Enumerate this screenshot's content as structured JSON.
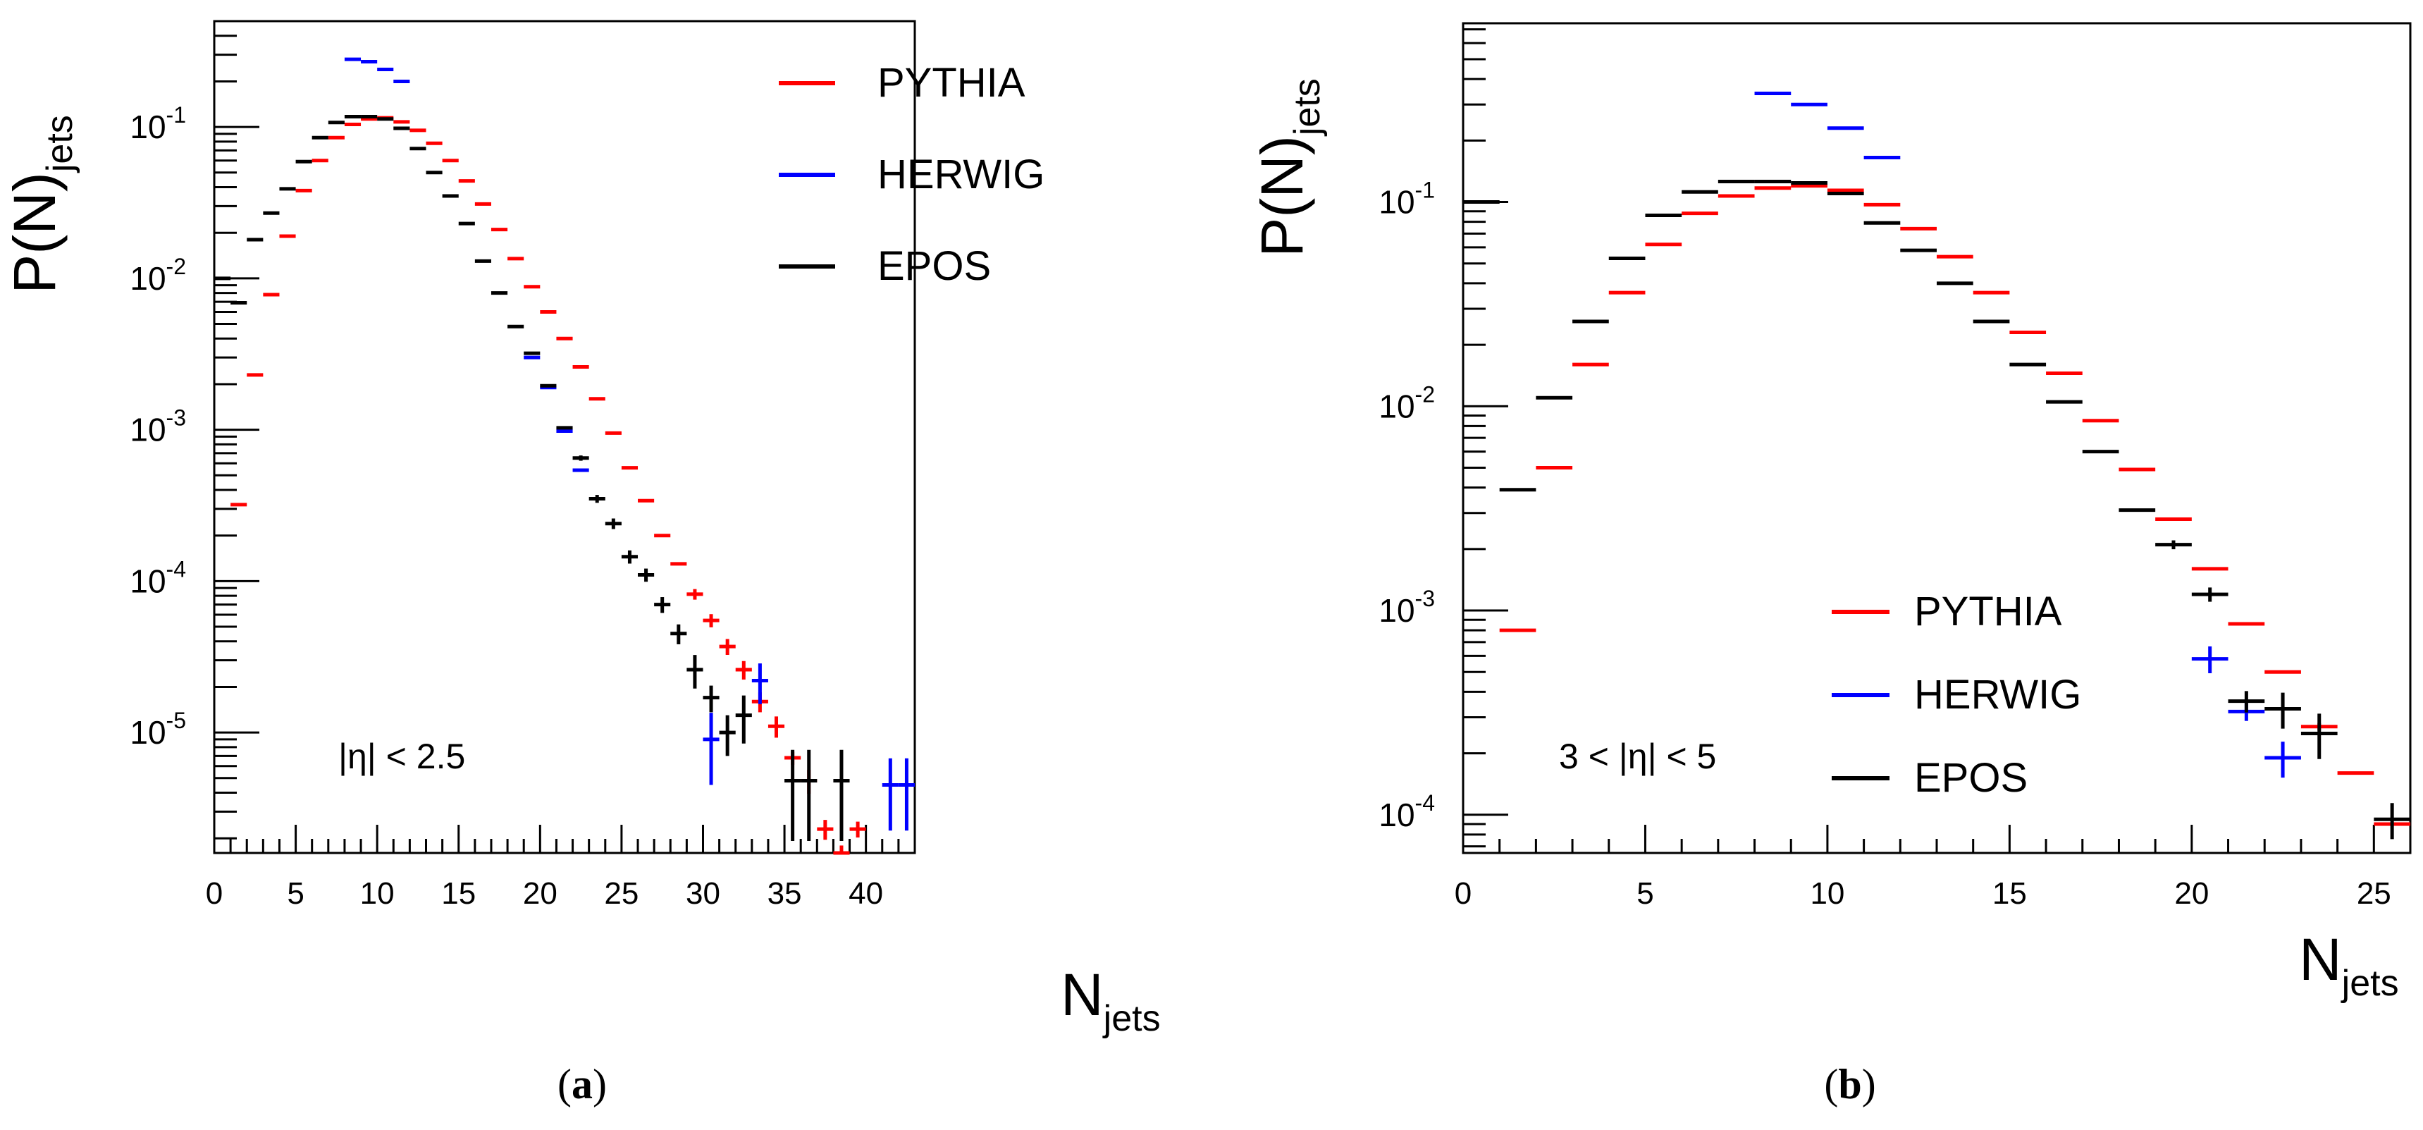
{
  "colors": {
    "PYTHIA": "#ff0000",
    "HERWIG": "#0000ff",
    "EPOS": "#000000"
  },
  "chart_data": [
    {
      "type": "scatter",
      "panel": "a",
      "caption_bold": "a",
      "xlabel": "N",
      "xlabel_sub": "jets",
      "ylabel": "P(N)",
      "ylabel_sub": "jets",
      "y_scale": "log",
      "xlim": [
        0,
        43
      ],
      "ylim": [
        1.6e-06,
        0.5
      ],
      "xticks": [
        0,
        5,
        10,
        15,
        20,
        25,
        30,
        35,
        40
      ],
      "xtick_labels": [
        "0",
        "5",
        "10",
        "15",
        "20",
        "25",
        "30",
        "35",
        "40"
      ],
      "yticks": [
        {
          "exp": -5,
          "base": "10",
          "sup": "-5"
        },
        {
          "exp": -4,
          "base": "10",
          "sup": "-4"
        },
        {
          "exp": -3,
          "base": "10",
          "sup": "-3"
        },
        {
          "exp": -2,
          "base": "10",
          "sup": "-2"
        },
        {
          "exp": -1,
          "base": "10",
          "sup": "-1"
        }
      ],
      "annotation": "|η| < 2.5",
      "legend": [
        "PYTHIA",
        "HERWIG",
        "EPOS"
      ],
      "legend_position": "top-right",
      "series": [
        {
          "name": "PYTHIA",
          "points": [
            [
              1,
              0.00032,
              0
            ],
            [
              2,
              0.0023,
              0
            ],
            [
              3,
              0.0078,
              0
            ],
            [
              4,
              0.019,
              0
            ],
            [
              5,
              0.038,
              0
            ],
            [
              6,
              0.06,
              0
            ],
            [
              7,
              0.085,
              0
            ],
            [
              8,
              0.104,
              0
            ],
            [
              9,
              0.113,
              0
            ],
            [
              10,
              0.115,
              0
            ],
            [
              11,
              0.108,
              0
            ],
            [
              12,
              0.095,
              0
            ],
            [
              13,
              0.078,
              0
            ],
            [
              14,
              0.06,
              0
            ],
            [
              15,
              0.044,
              0
            ],
            [
              16,
              0.031,
              0
            ],
            [
              17,
              0.021,
              0
            ],
            [
              18,
              0.0135,
              0
            ],
            [
              19,
              0.0088,
              0
            ],
            [
              20,
              0.006,
              0
            ],
            [
              21,
              0.004,
              0
            ],
            [
              22,
              0.0026,
              0
            ],
            [
              23,
              0.0016,
              0
            ],
            [
              24,
              0.00095,
              0
            ],
            [
              25,
              0.00056,
              0
            ],
            [
              26,
              0.00034,
              0
            ],
            [
              27,
              0.0002,
              0
            ],
            [
              28,
              0.00013,
              0
            ],
            [
              29,
              8.2e-05,
              0.08
            ],
            [
              30,
              5.5e-05,
              0.1
            ],
            [
              31,
              3.7e-05,
              0.12
            ],
            [
              32,
              2.6e-05,
              0.14
            ],
            [
              33,
              1.6e-05,
              0.15
            ],
            [
              34,
              1.1e-05,
              0.16
            ],
            [
              35,
              6.8e-06,
              0.1
            ],
            [
              36,
              4.8e-06,
              0.18
            ],
            [
              37,
              2.3e-06,
              0.15
            ],
            [
              38,
              1.6e-06,
              0.12
            ],
            [
              39,
              2.3e-06,
              0.12
            ]
          ]
        },
        {
          "name": "HERWIG",
          "points": [
            [
              8,
              0.28,
              0
            ],
            [
              9,
              0.27,
              0
            ],
            [
              10,
              0.24,
              0
            ],
            [
              11,
              0.2,
              0
            ],
            [
              19,
              0.003,
              0
            ],
            [
              20,
              0.0019,
              0
            ],
            [
              21,
              0.00098,
              0
            ],
            [
              22,
              0.00054,
              0
            ],
            [
              30,
              9e-06,
              0.5
            ],
            [
              33,
              2.2e-05,
              0.3
            ],
            [
              41,
              4.5e-06,
              0.5
            ],
            [
              42,
              4.5e-06,
              0.5
            ]
          ]
        },
        {
          "name": "EPOS",
          "points": [
            [
              0,
              0.01,
              0
            ],
            [
              1,
              0.0069,
              0
            ],
            [
              2,
              0.018,
              0
            ],
            [
              3,
              0.027,
              0
            ],
            [
              4,
              0.039,
              0
            ],
            [
              5,
              0.059,
              0
            ],
            [
              6,
              0.085,
              0
            ],
            [
              7,
              0.107,
              0
            ],
            [
              8,
              0.117,
              0
            ],
            [
              9,
              0.117,
              0
            ],
            [
              10,
              0.113,
              0
            ],
            [
              11,
              0.098,
              0
            ],
            [
              12,
              0.072,
              0
            ],
            [
              13,
              0.05,
              0
            ],
            [
              14,
              0.035,
              0
            ],
            [
              15,
              0.023,
              0
            ],
            [
              16,
              0.013,
              0
            ],
            [
              17,
              0.008,
              0
            ],
            [
              18,
              0.0048,
              0
            ],
            [
              19,
              0.0032,
              0
            ],
            [
              20,
              0.00195,
              0
            ],
            [
              21,
              0.00103,
              0
            ],
            [
              22,
              0.00065,
              0.04
            ],
            [
              23,
              0.00035,
              0.06
            ],
            [
              24,
              0.00024,
              0.08
            ],
            [
              25,
              0.000145,
              0.1
            ],
            [
              26,
              0.00011,
              0.1
            ],
            [
              27,
              7e-05,
              0.12
            ],
            [
              28,
              4.5e-05,
              0.15
            ],
            [
              29,
              2.6e-05,
              0.25
            ],
            [
              30,
              1.7e-05,
              0.2
            ],
            [
              31,
              1e-05,
              0.3
            ],
            [
              32,
              1.3e-05,
              0.35
            ],
            [
              35,
              4.8e-06,
              0.6
            ],
            [
              36,
              4.8e-06,
              0.6
            ],
            [
              38,
              4.8e-06,
              0.6
            ]
          ]
        }
      ]
    },
    {
      "type": "scatter",
      "panel": "b",
      "caption_bold": "b",
      "xlabel": "N",
      "xlabel_sub": "jets",
      "ylabel": "P(N)",
      "ylabel_sub": "jets",
      "y_scale": "log",
      "xlim": [
        0,
        26
      ],
      "ylim": [
        6.5e-05,
        0.75
      ],
      "xticks": [
        0,
        5,
        10,
        15,
        20,
        25
      ],
      "xtick_labels": [
        "0",
        "5",
        "10",
        "15",
        "20",
        "25"
      ],
      "yticks": [
        {
          "exp": -4,
          "base": "10",
          "sup": "-4"
        },
        {
          "exp": -3,
          "base": "10",
          "sup": "-3"
        },
        {
          "exp": -2,
          "base": "10",
          "sup": "-2"
        },
        {
          "exp": -1,
          "base": "10",
          "sup": "-1"
        }
      ],
      "annotation": "3 < |η| < 5",
      "legend": [
        "PYTHIA",
        "HERWIG",
        "EPOS"
      ],
      "legend_position": "bottom-right",
      "series": [
        {
          "name": "PYTHIA",
          "points": [
            [
              1,
              0.0008,
              0
            ],
            [
              2,
              0.005,
              0
            ],
            [
              3,
              0.016,
              0
            ],
            [
              4,
              0.036,
              0
            ],
            [
              5,
              0.062,
              0
            ],
            [
              6,
              0.088,
              0
            ],
            [
              7,
              0.107,
              0
            ],
            [
              8,
              0.117,
              0
            ],
            [
              9,
              0.12,
              0
            ],
            [
              10,
              0.114,
              0
            ],
            [
              11,
              0.097,
              0
            ],
            [
              12,
              0.074,
              0
            ],
            [
              13,
              0.054,
              0
            ],
            [
              14,
              0.036,
              0
            ],
            [
              15,
              0.023,
              0
            ],
            [
              16,
              0.0145,
              0
            ],
            [
              17,
              0.0085,
              0
            ],
            [
              18,
              0.0049,
              0
            ],
            [
              19,
              0.0028,
              0
            ],
            [
              20,
              0.0016,
              0
            ],
            [
              21,
              0.00086,
              0
            ],
            [
              22,
              0.0005,
              0
            ],
            [
              23,
              0.00027,
              0.04
            ],
            [
              24,
              0.00016,
              0
            ],
            [
              25,
              9e-05,
              0
            ]
          ]
        },
        {
          "name": "HERWIG",
          "points": [
            [
              8,
              0.34,
              0
            ],
            [
              9,
              0.3,
              0
            ],
            [
              10,
              0.23,
              0
            ],
            [
              11,
              0.165,
              0
            ],
            [
              20,
              0.00058,
              0.15
            ],
            [
              21,
              0.00032,
              0.1
            ],
            [
              22,
              0.00019,
              0.2
            ]
          ]
        },
        {
          "name": "EPOS",
          "points": [
            [
              0,
              0.1,
              0
            ],
            [
              1,
              0.0039,
              0
            ],
            [
              2,
              0.011,
              0
            ],
            [
              3,
              0.026,
              0
            ],
            [
              4,
              0.053,
              0
            ],
            [
              5,
              0.086,
              0
            ],
            [
              6,
              0.112,
              0
            ],
            [
              7,
              0.126,
              0
            ],
            [
              8,
              0.126,
              0
            ],
            [
              9,
              0.124,
              0
            ],
            [
              10,
              0.11,
              0
            ],
            [
              11,
              0.079,
              0
            ],
            [
              12,
              0.058,
              0
            ],
            [
              13,
              0.04,
              0
            ],
            [
              14,
              0.026,
              0
            ],
            [
              15,
              0.016,
              0
            ],
            [
              16,
              0.0105,
              0
            ],
            [
              17,
              0.006,
              0
            ],
            [
              18,
              0.0031,
              0
            ],
            [
              19,
              0.0021,
              0.05
            ],
            [
              20,
              0.0012,
              0.08
            ],
            [
              21,
              0.00036,
              0.12
            ],
            [
              22,
              0.00033,
              0.2
            ],
            [
              23,
              0.00025,
              0.25
            ],
            [
              25,
              9.5e-05,
              0.2
            ]
          ]
        }
      ]
    }
  ]
}
